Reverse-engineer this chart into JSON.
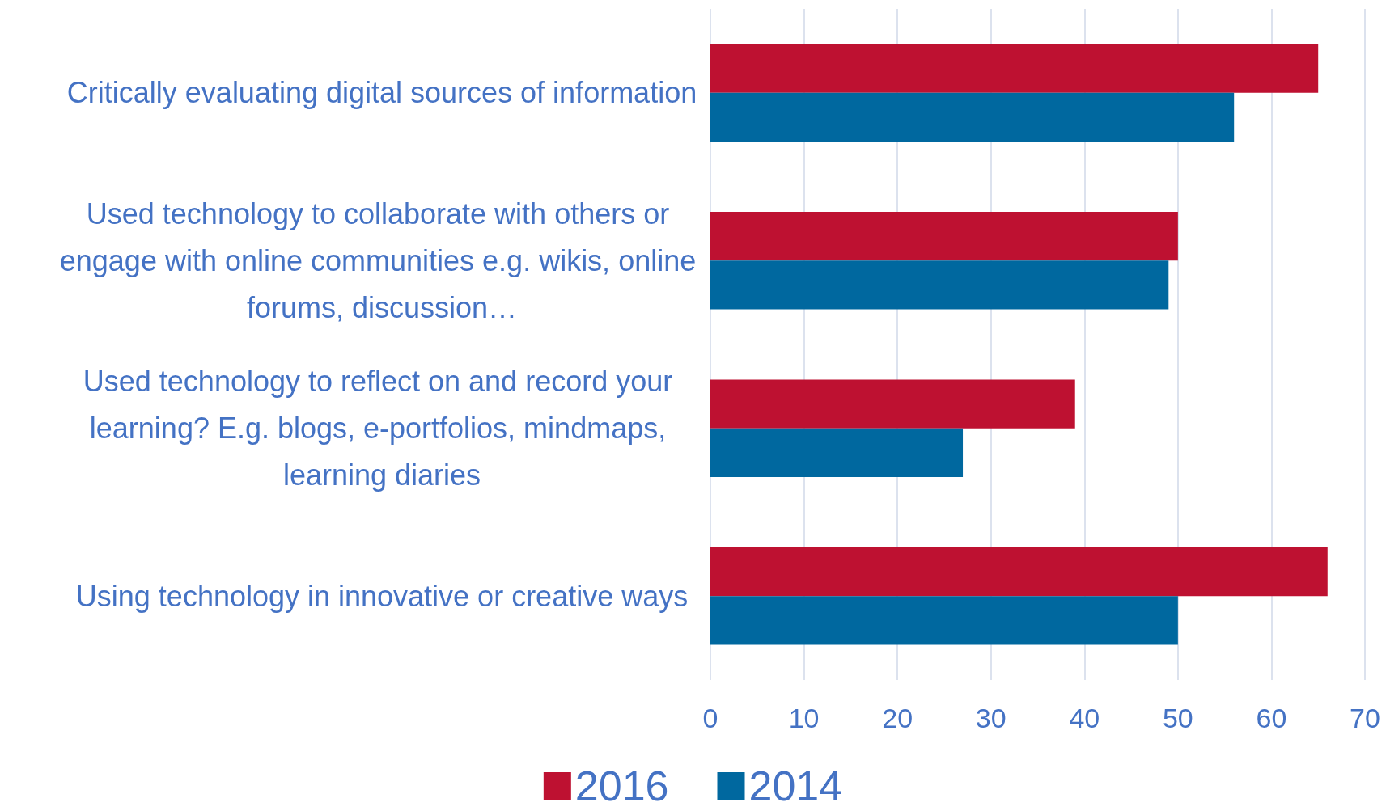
{
  "chart_data": {
    "type": "bar",
    "orientation": "horizontal",
    "categories": [
      "Critically evaluating digital sources of information",
      "Used technology to collaborate with others or engage with online communities e.g. wikis, online forums, discussion…",
      "Used technology to reflect on and record your learning? E.g. blogs, e-portfolios, mindmaps, learning diaries",
      "Using technology in innovative or creative ways"
    ],
    "series": [
      {
        "name": "2016",
        "color": "#be1131",
        "values": [
          65,
          50,
          39,
          66
        ]
      },
      {
        "name": "2014",
        "color": "#00689f",
        "values": [
          56,
          49,
          27,
          50
        ]
      }
    ],
    "xlim": [
      0,
      70
    ],
    "xticks": [
      0,
      10,
      20,
      30,
      40,
      50,
      60,
      70
    ],
    "grid": "x",
    "legend": "bottom"
  }
}
